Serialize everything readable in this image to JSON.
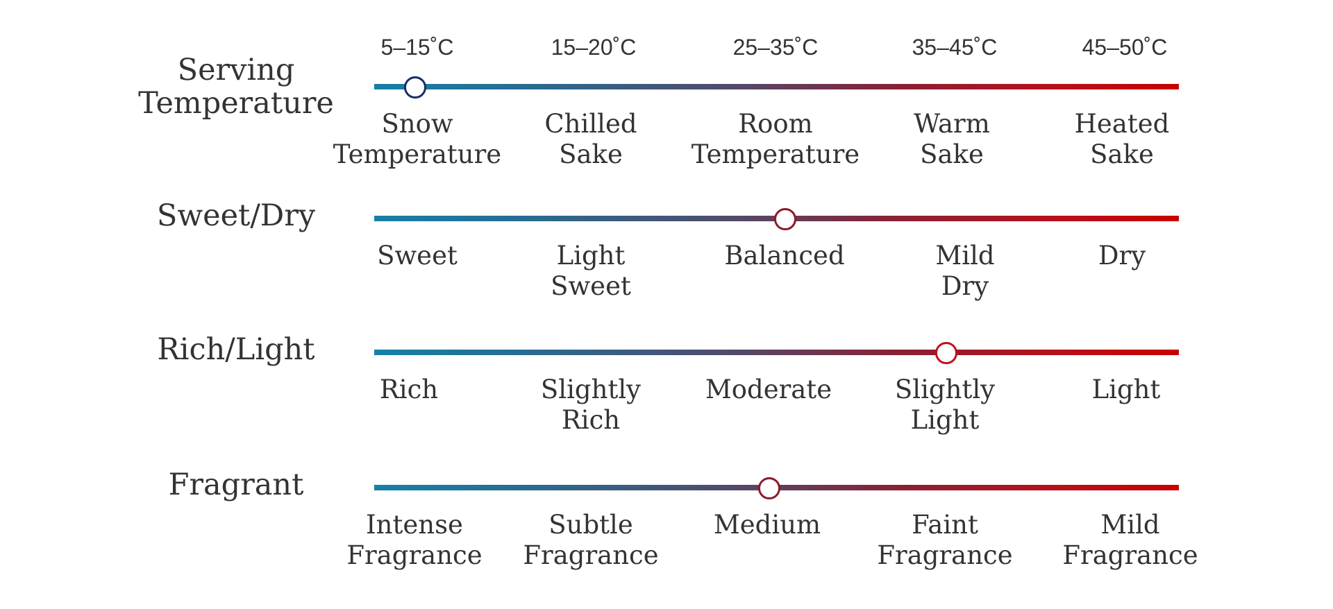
{
  "rows": [
    {
      "title": "Serving Temperature",
      "value_fraction": 0.05,
      "marker_color": "#1a2a6c",
      "top_labels": [
        "5–15˚C",
        "15–20˚C",
        "25–35˚C",
        "35–45˚C",
        "45–50˚C"
      ],
      "labels": [
        "Snow Temperature",
        "Chilled Sake",
        "Room Temperature",
        "Warm Sake",
        "Heated Sake"
      ]
    },
    {
      "title": "Sweet/Dry",
      "value_fraction": 0.51,
      "marker_color": "#8b1a2b",
      "labels": [
        "Sweet",
        "Light Sweet",
        "Balanced",
        "Mild Dry",
        "Dry"
      ]
    },
    {
      "title": "Rich/Light",
      "value_fraction": 0.71,
      "marker_color": "#c0101a",
      "labels": [
        "Rich",
        "Slightly Rich",
        "Moderate",
        "Slightly Light",
        "Light"
      ]
    },
    {
      "title": "Fragrant",
      "value_fraction": 0.49,
      "marker_color": "#8b1a2b",
      "labels": [
        "Intense Fragrance",
        "Subtle Fragrance",
        "Medium",
        "Faint Fragrance",
        "Mild Fragrance"
      ]
    }
  ],
  "gradient_colors": {
    "start": "#1680a8",
    "end": "#c80000"
  }
}
